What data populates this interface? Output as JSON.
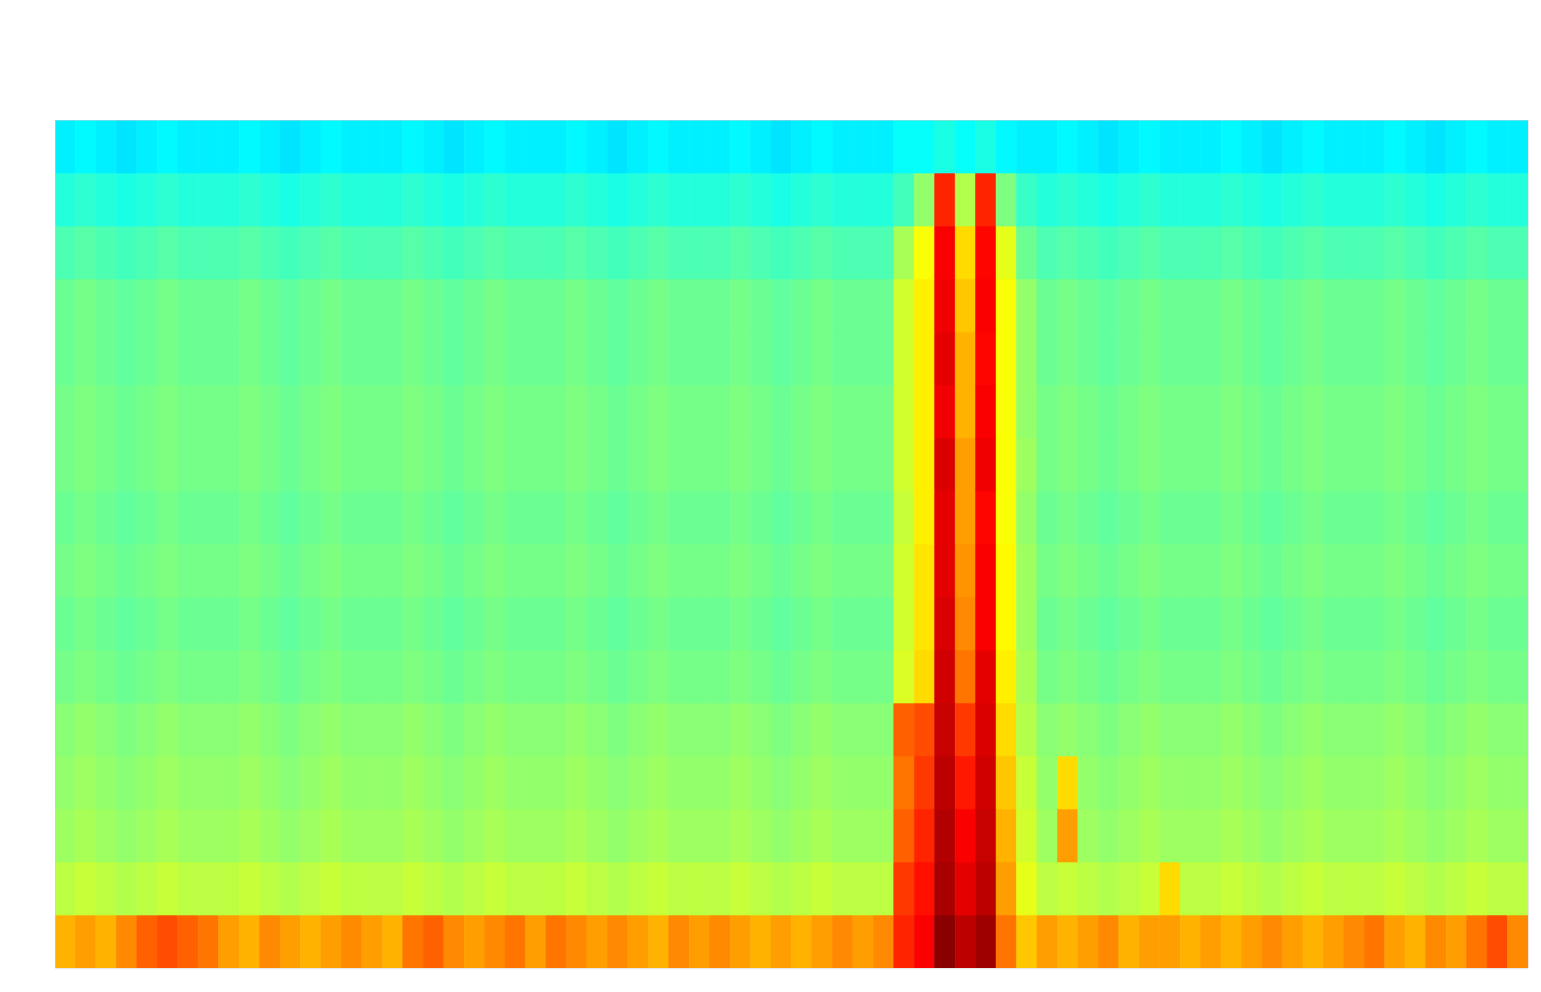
{
  "chart_data": {
    "type": "heatmap",
    "color": "jet",
    "tick_labels": false,
    "xlim": [
      0,
      72
    ],
    "ylim": [
      0,
      16
    ],
    "zlim": [
      0,
      100
    ],
    "cells": [
      [
        70,
        72,
        70,
        74,
        78,
        80,
        78,
        76,
        72,
        70,
        74,
        72,
        70,
        72,
        74,
        72,
        70,
        76,
        78,
        74,
        72,
        74,
        76,
        72,
        76,
        74,
        72,
        74,
        72,
        70,
        74,
        72,
        74,
        72,
        70,
        72,
        70,
        72,
        74,
        72,
        74,
        84,
        88,
        99,
        94,
        97,
        76,
        68,
        72,
        70,
        72,
        74,
        70,
        72,
        72,
        70,
        72,
        70,
        72,
        74,
        72,
        70,
        72,
        74,
        76,
        72,
        70,
        74,
        72,
        76,
        80,
        74
      ],
      [
        56,
        57,
        56,
        55,
        56,
        57,
        56,
        56,
        56,
        57,
        56,
        55,
        56,
        57,
        56,
        56,
        56,
        57,
        56,
        55,
        56,
        57,
        56,
        56,
        56,
        57,
        56,
        55,
        56,
        57,
        56,
        56,
        56,
        57,
        56,
        55,
        56,
        57,
        56,
        56,
        56,
        82,
        86,
        96,
        90,
        94,
        72,
        60,
        56,
        57,
        56,
        55,
        56,
        57,
        66,
        56,
        56,
        57,
        56,
        55,
        56,
        57,
        56,
        56,
        56,
        57,
        56,
        55,
        56,
        57,
        56,
        56
      ],
      [
        53,
        54,
        53,
        52,
        53,
        54,
        53,
        53,
        53,
        54,
        53,
        52,
        53,
        54,
        53,
        53,
        53,
        54,
        53,
        52,
        53,
        54,
        53,
        53,
        53,
        54,
        53,
        52,
        53,
        54,
        53,
        53,
        53,
        54,
        53,
        52,
        53,
        54,
        53,
        53,
        53,
        78,
        84,
        95,
        88,
        93,
        70,
        58,
        53,
        72,
        53,
        52,
        53,
        54,
        53,
        53,
        53,
        54,
        53,
        52,
        53,
        54,
        53,
        53,
        53,
        54,
        53,
        52,
        53,
        54,
        53,
        53
      ],
      [
        52,
        53,
        52,
        51,
        52,
        53,
        52,
        52,
        52,
        53,
        52,
        51,
        52,
        53,
        52,
        52,
        52,
        53,
        52,
        51,
        52,
        53,
        52,
        52,
        52,
        53,
        52,
        51,
        52,
        53,
        52,
        52,
        52,
        53,
        52,
        51,
        52,
        53,
        52,
        52,
        52,
        76,
        82,
        94,
        85,
        92,
        68,
        57,
        52,
        66,
        52,
        51,
        52,
        53,
        52,
        52,
        52,
        53,
        52,
        51,
        52,
        53,
        52,
        52,
        52,
        53,
        52,
        51,
        52,
        53,
        52,
        52
      ],
      [
        51,
        52,
        51,
        50,
        51,
        52,
        51,
        51,
        51,
        52,
        51,
        50,
        51,
        52,
        51,
        51,
        51,
        52,
        51,
        50,
        51,
        52,
        51,
        51,
        51,
        52,
        51,
        50,
        51,
        52,
        51,
        51,
        51,
        52,
        51,
        50,
        51,
        52,
        51,
        51,
        51,
        78,
        80,
        93,
        82,
        91,
        66,
        55,
        51,
        52,
        51,
        50,
        51,
        52,
        51,
        51,
        51,
        52,
        51,
        50,
        51,
        52,
        51,
        51,
        51,
        52,
        51,
        50,
        51,
        52,
        51,
        51
      ],
      [
        49,
        50,
        49,
        48,
        49,
        50,
        49,
        49,
        49,
        50,
        49,
        48,
        49,
        50,
        49,
        49,
        49,
        50,
        49,
        48,
        49,
        50,
        49,
        49,
        49,
        50,
        49,
        48,
        49,
        50,
        49,
        49,
        49,
        50,
        49,
        48,
        49,
        50,
        49,
        49,
        49,
        59,
        66,
        92,
        76,
        90,
        64,
        54,
        49,
        50,
        49,
        48,
        49,
        50,
        49,
        49,
        49,
        50,
        49,
        48,
        49,
        50,
        49,
        49,
        49,
        50,
        49,
        48,
        49,
        50,
        49,
        49
      ],
      [
        48,
        49,
        48,
        47,
        48,
        49,
        48,
        48,
        48,
        49,
        48,
        47,
        48,
        49,
        48,
        48,
        48,
        49,
        48,
        47,
        48,
        49,
        48,
        48,
        48,
        49,
        48,
        47,
        48,
        49,
        48,
        48,
        48,
        49,
        48,
        47,
        48,
        49,
        48,
        48,
        48,
        58,
        65,
        91,
        74,
        88,
        63,
        53,
        48,
        49,
        48,
        47,
        48,
        49,
        48,
        48,
        48,
        49,
        48,
        47,
        48,
        49,
        48,
        48,
        48,
        49,
        48,
        47,
        48,
        49,
        48,
        48
      ],
      [
        49,
        50,
        49,
        48,
        49,
        50,
        49,
        49,
        49,
        50,
        49,
        48,
        49,
        50,
        49,
        49,
        49,
        50,
        49,
        48,
        49,
        50,
        49,
        49,
        49,
        50,
        49,
        48,
        49,
        50,
        49,
        49,
        49,
        50,
        49,
        48,
        49,
        50,
        49,
        49,
        49,
        58,
        65,
        90,
        73,
        88,
        63,
        53,
        49,
        50,
        49,
        48,
        49,
        50,
        49,
        49,
        49,
        50,
        49,
        48,
        49,
        50,
        49,
        49,
        49,
        50,
        49,
        48,
        49,
        50,
        49,
        49
      ],
      [
        48,
        49,
        48,
        47,
        48,
        49,
        48,
        48,
        48,
        49,
        48,
        47,
        48,
        49,
        48,
        48,
        48,
        49,
        48,
        47,
        48,
        49,
        48,
        48,
        48,
        49,
        48,
        47,
        48,
        49,
        48,
        48,
        48,
        49,
        48,
        47,
        48,
        49,
        48,
        48,
        48,
        57,
        64,
        90,
        72,
        87,
        62,
        52,
        48,
        49,
        48,
        47,
        48,
        49,
        48,
        48,
        48,
        49,
        48,
        47,
        48,
        49,
        48,
        48,
        48,
        49,
        48,
        47,
        48,
        49,
        48,
        48
      ],
      [
        49,
        50,
        49,
        48,
        49,
        50,
        49,
        49,
        49,
        50,
        49,
        48,
        49,
        50,
        49,
        49,
        49,
        50,
        49,
        48,
        49,
        50,
        49,
        49,
        49,
        50,
        49,
        48,
        49,
        50,
        49,
        49,
        49,
        50,
        49,
        48,
        49,
        50,
        49,
        49,
        49,
        58,
        64,
        91,
        72,
        89,
        62,
        53,
        49,
        50,
        49,
        48,
        49,
        50,
        49,
        49,
        49,
        50,
        49,
        48,
        49,
        50,
        49,
        49,
        49,
        50,
        49,
        48,
        49,
        50,
        49,
        49
      ],
      [
        49,
        50,
        49,
        48,
        49,
        50,
        49,
        49,
        49,
        50,
        49,
        48,
        49,
        50,
        49,
        49,
        49,
        50,
        49,
        48,
        49,
        50,
        49,
        49,
        49,
        50,
        49,
        48,
        49,
        50,
        49,
        49,
        49,
        50,
        49,
        48,
        49,
        50,
        49,
        49,
        49,
        58,
        64,
        89,
        70,
        88,
        62,
        52,
        49,
        50,
        49,
        48,
        49,
        50,
        49,
        49,
        49,
        50,
        49,
        48,
        49,
        50,
        49,
        49,
        49,
        50,
        49,
        48,
        49,
        50,
        49,
        49
      ],
      [
        48,
        49,
        48,
        47,
        48,
        49,
        48,
        48,
        48,
        49,
        48,
        47,
        48,
        49,
        48,
        48,
        48,
        49,
        48,
        47,
        48,
        49,
        48,
        48,
        48,
        49,
        48,
        47,
        48,
        49,
        48,
        48,
        48,
        49,
        48,
        47,
        48,
        49,
        48,
        48,
        48,
        58,
        64,
        90,
        70,
        87,
        62,
        52,
        48,
        49,
        48,
        47,
        48,
        49,
        48,
        48,
        48,
        49,
        48,
        47,
        48,
        49,
        48,
        48,
        48,
        49,
        48,
        47,
        48,
        49,
        48,
        48
      ],
      [
        48,
        49,
        48,
        47,
        48,
        49,
        48,
        48,
        48,
        49,
        48,
        47,
        48,
        49,
        48,
        48,
        48,
        49,
        48,
        47,
        48,
        49,
        48,
        48,
        48,
        49,
        48,
        47,
        48,
        49,
        48,
        48,
        48,
        49,
        48,
        47,
        48,
        49,
        48,
        48,
        48,
        58,
        64,
        89,
        68,
        88,
        62,
        52,
        48,
        49,
        48,
        47,
        48,
        49,
        48,
        48,
        48,
        49,
        48,
        47,
        48,
        49,
        48,
        48,
        48,
        49,
        48,
        47,
        48,
        49,
        48,
        48
      ],
      [
        45,
        46,
        45,
        44,
        45,
        46,
        45,
        45,
        45,
        46,
        45,
        44,
        45,
        46,
        45,
        45,
        45,
        46,
        45,
        44,
        45,
        46,
        45,
        45,
        45,
        46,
        45,
        44,
        45,
        46,
        45,
        45,
        45,
        46,
        45,
        44,
        45,
        46,
        45,
        45,
        45,
        54,
        62,
        88,
        66,
        87,
        60,
        48,
        45,
        46,
        45,
        44,
        45,
        46,
        45,
        45,
        45,
        46,
        45,
        44,
        45,
        46,
        45,
        45,
        45,
        46,
        45,
        44,
        45,
        46,
        45,
        45
      ],
      [
        41,
        42,
        41,
        40,
        41,
        42,
        41,
        41,
        41,
        42,
        41,
        40,
        41,
        42,
        41,
        41,
        41,
        42,
        41,
        40,
        41,
        42,
        41,
        41,
        41,
        42,
        41,
        40,
        41,
        42,
        41,
        41,
        41,
        42,
        41,
        40,
        41,
        42,
        41,
        41,
        41,
        44,
        52,
        84,
        55,
        84,
        50,
        43,
        41,
        42,
        41,
        40,
        41,
        42,
        41,
        41,
        41,
        42,
        41,
        40,
        41,
        42,
        41,
        41,
        41,
        42,
        41,
        40,
        41,
        42,
        41,
        41
      ],
      [
        36,
        37,
        36,
        35,
        36,
        37,
        36,
        36,
        36,
        37,
        36,
        35,
        36,
        37,
        36,
        36,
        36,
        37,
        36,
        35,
        36,
        37,
        36,
        36,
        36,
        37,
        36,
        35,
        36,
        37,
        36,
        36,
        36,
        37,
        36,
        35,
        36,
        37,
        36,
        36,
        36,
        38,
        38,
        40,
        38,
        40,
        37,
        36,
        36,
        37,
        36,
        35,
        36,
        37,
        36,
        36,
        36,
        37,
        36,
        35,
        36,
        37,
        36,
        36,
        36,
        37,
        36,
        35,
        36,
        37,
        36,
        36
      ]
    ]
  }
}
